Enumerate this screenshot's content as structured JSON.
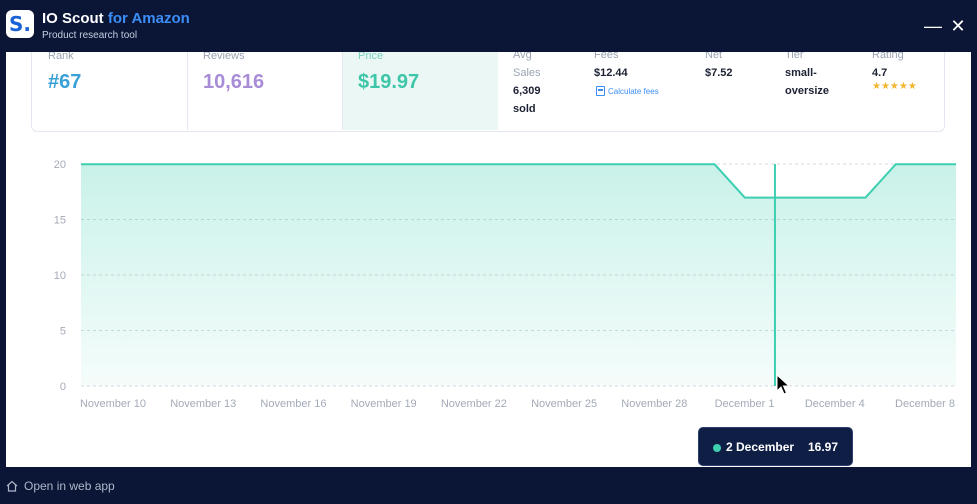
{
  "app": {
    "title_main": "IO Scout",
    "title_accent": "for Amazon",
    "subtitle": "Product research tool",
    "logo_letter": "S.",
    "minimize_glyph": "—",
    "close_glyph": "✕"
  },
  "stats": {
    "rank": {
      "label": "Rank",
      "value": "#67",
      "color": "#3aa0d8"
    },
    "reviews": {
      "label": "Reviews",
      "value": "10,616",
      "color": "#a98cd8"
    },
    "price": {
      "label": "Price",
      "value": "$19.97",
      "color": "#3ec6a8"
    },
    "avg_sales": {
      "label_1": "Avg",
      "label_2": "Sales",
      "value_1": "6,309",
      "value_2": "sold"
    },
    "fees": {
      "label": "Fees",
      "value": "$12.44",
      "link": "Calculate fees"
    },
    "net": {
      "label": "Net",
      "value": "$7.52"
    },
    "tier": {
      "label": "Tier",
      "value_1": "small-",
      "value_2": "oversize"
    },
    "rating": {
      "label": "Rating",
      "value": "4.7",
      "stars": "★★★★★"
    }
  },
  "chart_data": {
    "type": "area",
    "series_color": "#3ecfb1",
    "x_tick_labels": [
      "November 10",
      "November 13",
      "November 16",
      "November 19",
      "November 22",
      "November 25",
      "November 28",
      "December 1",
      "December 4",
      "December 8"
    ],
    "y_ticks": [
      0,
      5,
      10,
      15,
      20
    ],
    "ylim": [
      0,
      20
    ],
    "grid": "horizontal dashed",
    "points": [
      {
        "x": "Nov 9",
        "y": 19.97
      },
      {
        "x": "Nov 30",
        "y": 19.97
      },
      {
        "x": "Dec 1",
        "y": 16.97
      },
      {
        "x": "Dec 5",
        "y": 16.97
      },
      {
        "x": "Dec 6",
        "y": 19.97
      },
      {
        "x": "Dec 8",
        "y": 19.97
      }
    ],
    "hover": {
      "date": "2 December",
      "value": "16.97"
    }
  },
  "footer": {
    "open_web": "Open in web app"
  }
}
